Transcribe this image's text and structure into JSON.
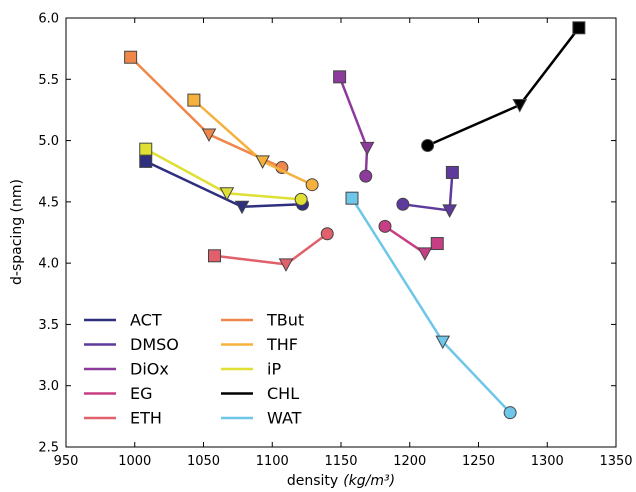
{
  "chart_data": {
    "type": "line",
    "xlabel": "density",
    "xlabel_unit": "(kg/m³)",
    "ylabel": "d-spacing (nm)",
    "xlim": [
      950,
      1350
    ],
    "ylim": [
      2.5,
      6.0
    ],
    "xticks": [
      950,
      1000,
      1050,
      1100,
      1150,
      1200,
      1250,
      1300,
      1350
    ],
    "yticks": [
      2.5,
      3.0,
      3.5,
      4.0,
      4.5,
      5.0,
      5.5,
      6.0
    ],
    "grid": false,
    "legend_position": "lower-left",
    "marker_order": [
      "square",
      "triangle-down",
      "circle"
    ],
    "series": [
      {
        "name": "ACT",
        "color": "#2e2f7f",
        "points": [
          [
            1008,
            4.83
          ],
          [
            1078,
            4.46
          ],
          [
            1122,
            4.48
          ]
        ]
      },
      {
        "name": "DMSO",
        "color": "#5d3a9b",
        "points": [
          [
            1231,
            4.74
          ],
          [
            1229,
            4.43
          ],
          [
            1195,
            4.48
          ]
        ]
      },
      {
        "name": "DiOx",
        "color": "#8c3a9b",
        "points": [
          [
            1149,
            5.52
          ],
          [
            1169,
            4.94
          ],
          [
            1168,
            4.71
          ]
        ]
      },
      {
        "name": "EG",
        "color": "#c83e84",
        "points": [
          [
            1220,
            4.16
          ],
          [
            1211,
            4.08
          ],
          [
            1182,
            4.3
          ]
        ]
      },
      {
        "name": "ETH",
        "color": "#e0606b",
        "points": [
          [
            1058,
            4.06
          ],
          [
            1110,
            3.99
          ],
          [
            1140,
            4.24
          ]
        ]
      },
      {
        "name": "TBut",
        "color": "#f0874a",
        "points": [
          [
            997,
            5.68
          ],
          [
            1054,
            5.05
          ],
          [
            1107,
            4.78
          ]
        ]
      },
      {
        "name": "THF",
        "color": "#f5b13c",
        "points": [
          [
            1043,
            5.33
          ],
          [
            1093,
            4.83
          ],
          [
            1129,
            4.64
          ]
        ]
      },
      {
        "name": "iP",
        "color": "#dfe033",
        "points": [
          [
            1008,
            4.93
          ],
          [
            1067,
            4.57
          ],
          [
            1121,
            4.52
          ]
        ]
      },
      {
        "name": "CHL",
        "color": "#000000",
        "points": [
          [
            1323,
            5.92
          ],
          [
            1280,
            5.29
          ],
          [
            1213,
            4.96
          ]
        ]
      },
      {
        "name": "WAT",
        "color": "#6ec6e8",
        "points": [
          [
            1158,
            4.53
          ],
          [
            1224,
            3.36
          ],
          [
            1273,
            2.78
          ]
        ]
      }
    ]
  }
}
